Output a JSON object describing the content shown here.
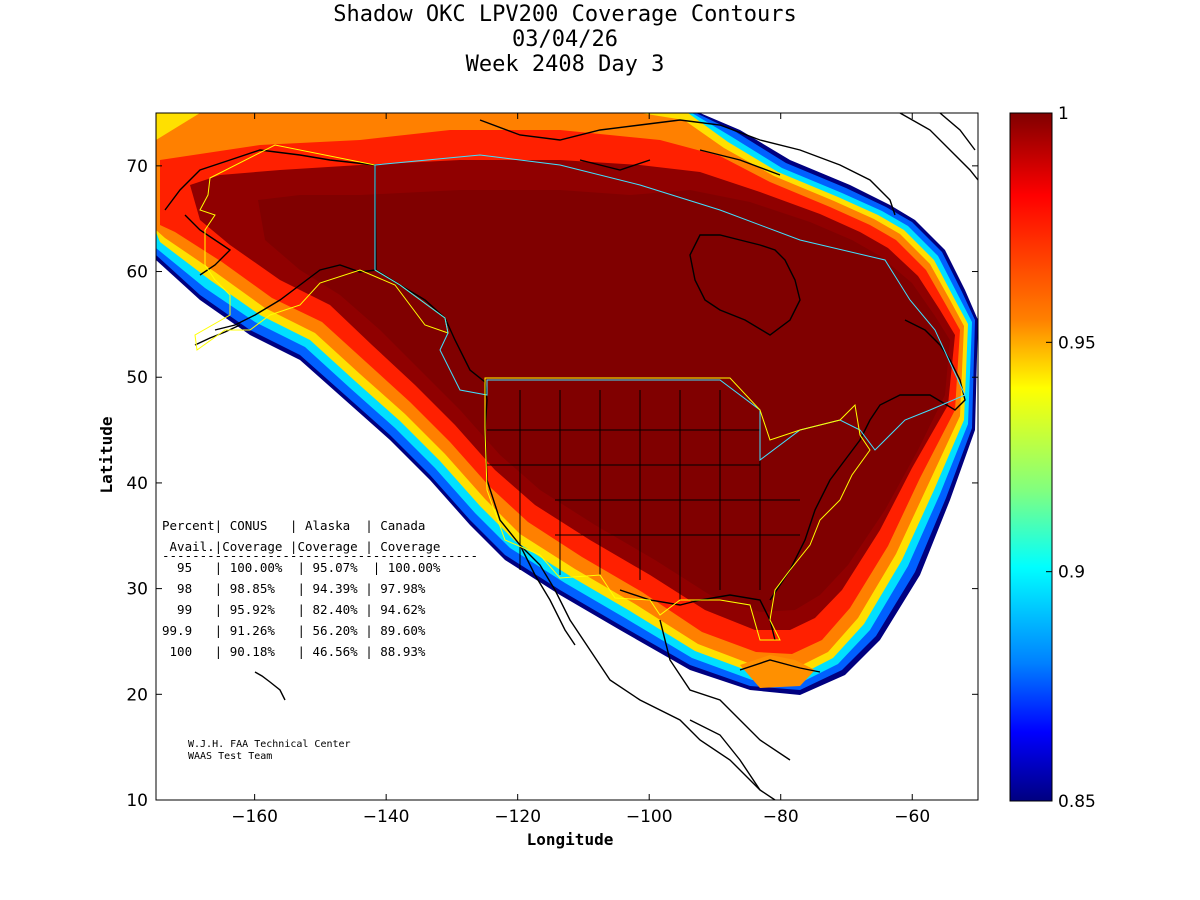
{
  "title": {
    "line1": "Shadow OKC LPV200 Coverage Contours",
    "line2": "03/04/26",
    "line3": "Week 2408 Day 3"
  },
  "axes": {
    "xlabel": "Longitude",
    "ylabel": "Latitude",
    "xticks": [
      -160,
      -140,
      -120,
      -100,
      -80,
      -60
    ],
    "yticks": [
      10,
      20,
      30,
      40,
      50,
      60,
      70
    ],
    "xlim": [
      -175,
      -50
    ],
    "ylim": [
      10,
      75
    ]
  },
  "colorbar": {
    "min": 0.85,
    "max": 1,
    "ticks": [
      {
        "value": 1,
        "label": "1"
      },
      {
        "value": 0.95,
        "label": "0.95"
      },
      {
        "value": 0.9,
        "label": "0.9"
      },
      {
        "value": 0.85,
        "label": "0.85"
      }
    ]
  },
  "table": {
    "header1": "Percent| CONUS   | Alaska  | Canada",
    "header2": " Avail.|Coverage |Coverage | Coverage",
    "divider": "------------------------------------------",
    "rows": [
      "  95   | 100.00%  | 95.07%  | 100.00%",
      "  98   | 98.85%   | 94.39% | 97.98%",
      "  99   | 95.92%   | 82.40% | 94.62%",
      "99.9   | 91.26%   | 56.20% | 89.60%",
      " 100   | 90.18%   | 46.56% | 88.93%"
    ]
  },
  "credit": {
    "line1": "W.J.H. FAA Technical Center",
    "line2": "WAAS Test Team"
  },
  "colors": {
    "high": "#800000",
    "red": "#ff0000",
    "orange": "#ff8000",
    "yellow": "#ffff00",
    "cyan": "#00ffff",
    "blue": "#0000ff",
    "navy": "#000080"
  },
  "chart_data": {
    "type": "heatmap",
    "title": "Shadow OKC LPV200 Coverage Contours",
    "xlabel": "Longitude",
    "ylabel": "Latitude",
    "xlim": [
      -175,
      -50
    ],
    "ylim": [
      10,
      75
    ],
    "colorbar_range": [
      0.85,
      1
    ],
    "coverage_table": [
      {
        "percent": "95",
        "conus": "100.00%",
        "alaska": "95.07%",
        "canada": "100.00%"
      },
      {
        "percent": "98",
        "conus": "98.85%",
        "alaska": "94.39%",
        "canada": "97.98%"
      },
      {
        "percent": "99",
        "conus": "95.92%",
        "alaska": "82.40%",
        "canada": "94.62%"
      },
      {
        "percent": "99.9",
        "conus": "91.26%",
        "alaska": "56.20%",
        "canada": "89.60%"
      },
      {
        "percent": "100",
        "conus": "90.18%",
        "alaska": "46.56%",
        "canada": "88.93%"
      }
    ]
  }
}
